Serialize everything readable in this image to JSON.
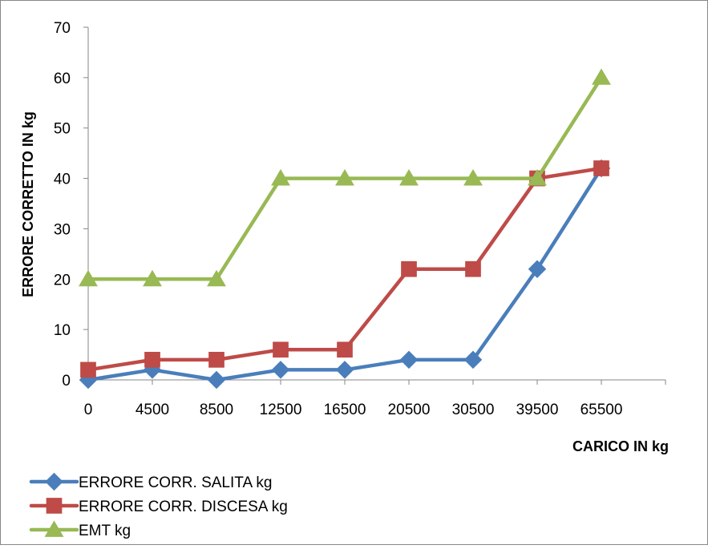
{
  "chart_data": {
    "type": "line",
    "categories": [
      "0",
      "4500",
      "8500",
      "12500",
      "16500",
      "20500",
      "30500",
      "39500",
      "65500"
    ],
    "series": [
      {
        "name": "ERRORE CORR. SALITA  kg",
        "values": [
          0,
          2,
          0,
          2,
          2,
          4,
          4,
          22,
          42
        ],
        "color": "#4a7ebb",
        "marker": "diamond"
      },
      {
        "name": "ERRORE CORR. DISCESA kg",
        "values": [
          2,
          4,
          4,
          6,
          6,
          22,
          22,
          40,
          42
        ],
        "color": "#be4b48",
        "marker": "square"
      },
      {
        "name": "EMT kg",
        "values": [
          20,
          20,
          20,
          40,
          40,
          40,
          40,
          40,
          60
        ],
        "color": "#98b954",
        "marker": "triangle"
      }
    ],
    "xlabel": "CARICO IN kg",
    "ylabel": "ERRORE CORRETTO IN kg",
    "ylim": [
      0,
      70
    ],
    "yticks": [
      0,
      10,
      20,
      30,
      40,
      50,
      60,
      70
    ],
    "grid": false,
    "legend_position": "bottom-left"
  }
}
